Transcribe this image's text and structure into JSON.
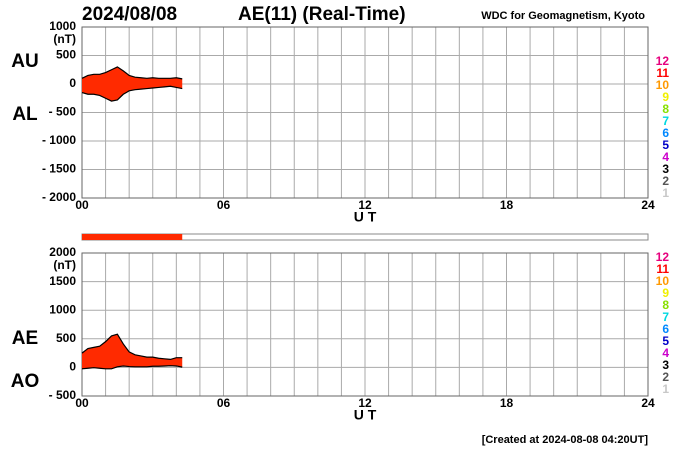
{
  "header": {
    "date": "2024/08/08",
    "title": "AE(11) (Real-Time)",
    "credit": "WDC for Geomagnetism, Kyoto"
  },
  "footer": "[Created at 2024-08-08 04:20UT]",
  "chart_data": [
    {
      "type": "area",
      "unit": "(nT)",
      "xlabel": "U T",
      "fill_color": "#ff2a00",
      "x": [
        0,
        0.25,
        0.5,
        0.75,
        1,
        1.25,
        1.5,
        1.75,
        2,
        2.25,
        2.5,
        2.75,
        3,
        3.25,
        3.5,
        3.75,
        4,
        4.25
      ],
      "series": [
        {
          "name": "AU",
          "color": "#000000",
          "values": [
            100,
            150,
            170,
            170,
            200,
            250,
            300,
            230,
            150,
            120,
            110,
            100,
            110,
            100,
            100,
            100,
            110,
            90
          ]
        },
        {
          "name": "AL",
          "color": "#000000",
          "values": [
            -150,
            -180,
            -180,
            -200,
            -250,
            -300,
            -280,
            -180,
            -120,
            -100,
            -90,
            -80,
            -70,
            -60,
            -50,
            -40,
            -60,
            -80
          ]
        }
      ],
      "xlim": [
        0,
        24
      ],
      "xticks": [
        {
          "value": 0,
          "label": "00"
        },
        {
          "value": 6,
          "label": "06"
        },
        12,
        18,
        24
      ],
      "xgrid": [
        1,
        2,
        3,
        4,
        5,
        7,
        8,
        9,
        10,
        11,
        13,
        14,
        15,
        16,
        17,
        19,
        20,
        21,
        22,
        23
      ],
      "ylim": [
        -2000,
        1000
      ],
      "yticks": [
        {
          "value": -2000,
          "label": "- 2000"
        },
        {
          "value": -1500,
          "label": "- 1500"
        },
        {
          "value": -1000,
          "label": "- 1000"
        },
        {
          "value": -500,
          "label": "- 500"
        },
        0,
        500,
        1000
      ],
      "grid": true,
      "station_legend": [
        {
          "label": "12",
          "color": "#e6007e"
        },
        {
          "label": "11",
          "color": "#ff0000"
        },
        {
          "label": "10",
          "color": "#ff9900"
        },
        {
          "label": "9",
          "color": "#f0f000"
        },
        {
          "label": "8",
          "color": "#88e000"
        },
        {
          "label": "7",
          "color": "#00d8e0"
        },
        {
          "label": "6",
          "color": "#0088ff"
        },
        {
          "label": "5",
          "color": "#0000c8"
        },
        {
          "label": "4",
          "color": "#cc00cc"
        },
        {
          "label": "3",
          "color": "#000000"
        },
        {
          "label": "2",
          "color": "#555555"
        },
        {
          "label": "1",
          "color": "#c8c8c8"
        }
      ]
    },
    {
      "type": "area",
      "unit": "(nT)",
      "xlabel": "U T",
      "fill_color": "#ff2a00",
      "x": [
        0,
        0.25,
        0.5,
        0.75,
        1,
        1.25,
        1.5,
        1.75,
        2,
        2.25,
        2.5,
        2.75,
        3,
        3.25,
        3.5,
        3.75,
        4,
        4.25
      ],
      "series": [
        {
          "name": "AE",
          "color": "#000000",
          "values": [
            250,
            330,
            350,
            370,
            450,
            550,
            580,
            410,
            270,
            220,
            200,
            180,
            180,
            160,
            150,
            140,
            170,
            170
          ]
        },
        {
          "name": "AO",
          "color": "#000000",
          "values": [
            -25,
            -15,
            -5,
            -15,
            -25,
            -25,
            10,
            25,
            15,
            10,
            10,
            10,
            20,
            20,
            25,
            30,
            25,
            5
          ]
        }
      ],
      "xlim": [
        0,
        24
      ],
      "xticks": [
        {
          "value": 0,
          "label": "00"
        },
        {
          "value": 6,
          "label": "06"
        },
        12,
        18,
        24
      ],
      "xgrid": [
        1,
        2,
        3,
        4,
        5,
        7,
        8,
        9,
        10,
        11,
        13,
        14,
        15,
        16,
        17,
        19,
        20,
        21,
        22,
        23
      ],
      "ylim": [
        -500,
        2000
      ],
      "yticks": [
        {
          "value": -500,
          "label": "- 500"
        },
        0,
        500,
        1000,
        1500,
        2000
      ],
      "grid": true,
      "station_legend": [
        {
          "label": "12",
          "color": "#e6007e"
        },
        {
          "label": "11",
          "color": "#ff0000"
        },
        {
          "label": "10",
          "color": "#ff9900"
        },
        {
          "label": "9",
          "color": "#f0f000"
        },
        {
          "label": "8",
          "color": "#88e000"
        },
        {
          "label": "7",
          "color": "#00d8e0"
        },
        {
          "label": "6",
          "color": "#0088ff"
        },
        {
          "label": "5",
          "color": "#0000c8"
        },
        {
          "label": "4",
          "color": "#cc00cc"
        },
        {
          "label": "3",
          "color": "#000000"
        },
        {
          "label": "2",
          "color": "#555555"
        },
        {
          "label": "1",
          "color": "#c8c8c8"
        }
      ]
    }
  ]
}
